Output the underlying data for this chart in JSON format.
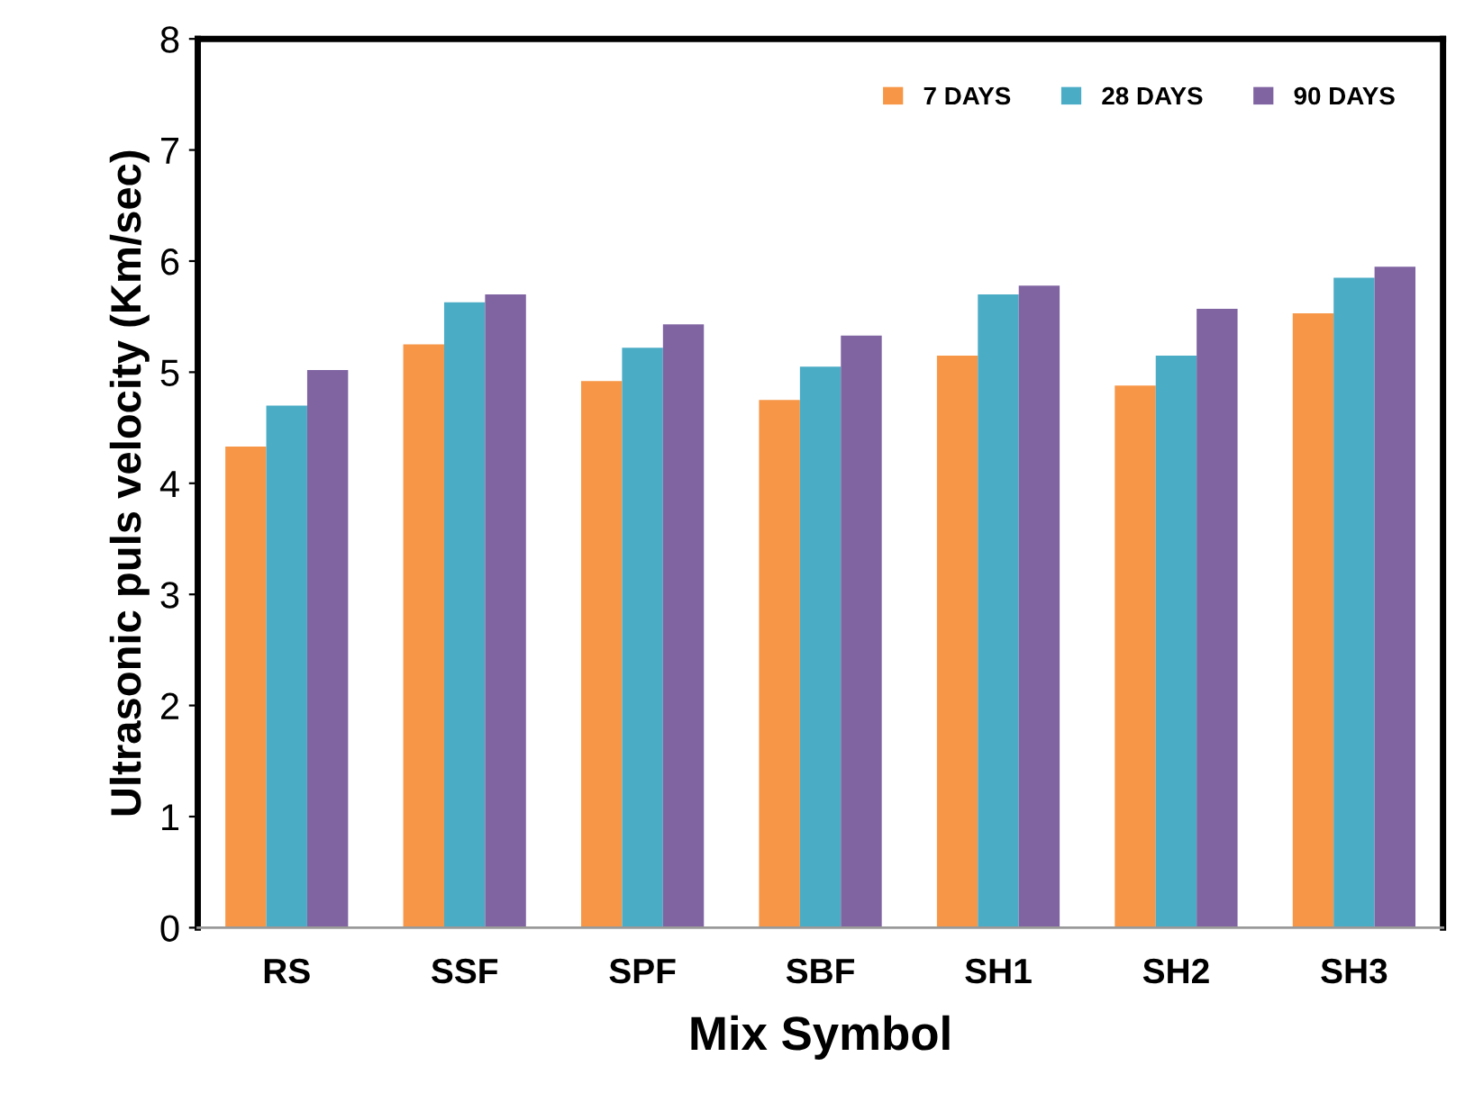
{
  "chart_data": {
    "type": "bar",
    "xlabel": "Mix Symbol",
    "ylabel": "Ultrasonic puls velocity (Km/sec)",
    "categories": [
      "RS",
      "SSF",
      "SPF",
      "SBF",
      "SH1",
      "SH2",
      "SH3"
    ],
    "series": [
      {
        "name": "7 DAYS",
        "color": "#f79646",
        "values": [
          4.33,
          5.25,
          4.92,
          4.75,
          5.15,
          4.88,
          5.53
        ]
      },
      {
        "name": "28 DAYS",
        "color": "#4bacc6",
        "values": [
          4.7,
          5.63,
          5.22,
          5.05,
          5.7,
          5.15,
          5.85
        ]
      },
      {
        "name": "90 DAYS",
        "color": "#8064a2",
        "values": [
          5.02,
          5.7,
          5.43,
          5.33,
          5.78,
          5.57,
          5.95
        ]
      }
    ],
    "ylim": [
      0,
      8
    ],
    "yticks": [
      0,
      1,
      2,
      3,
      4,
      5,
      6,
      7,
      8
    ],
    "grid": false,
    "legend": "top right"
  }
}
